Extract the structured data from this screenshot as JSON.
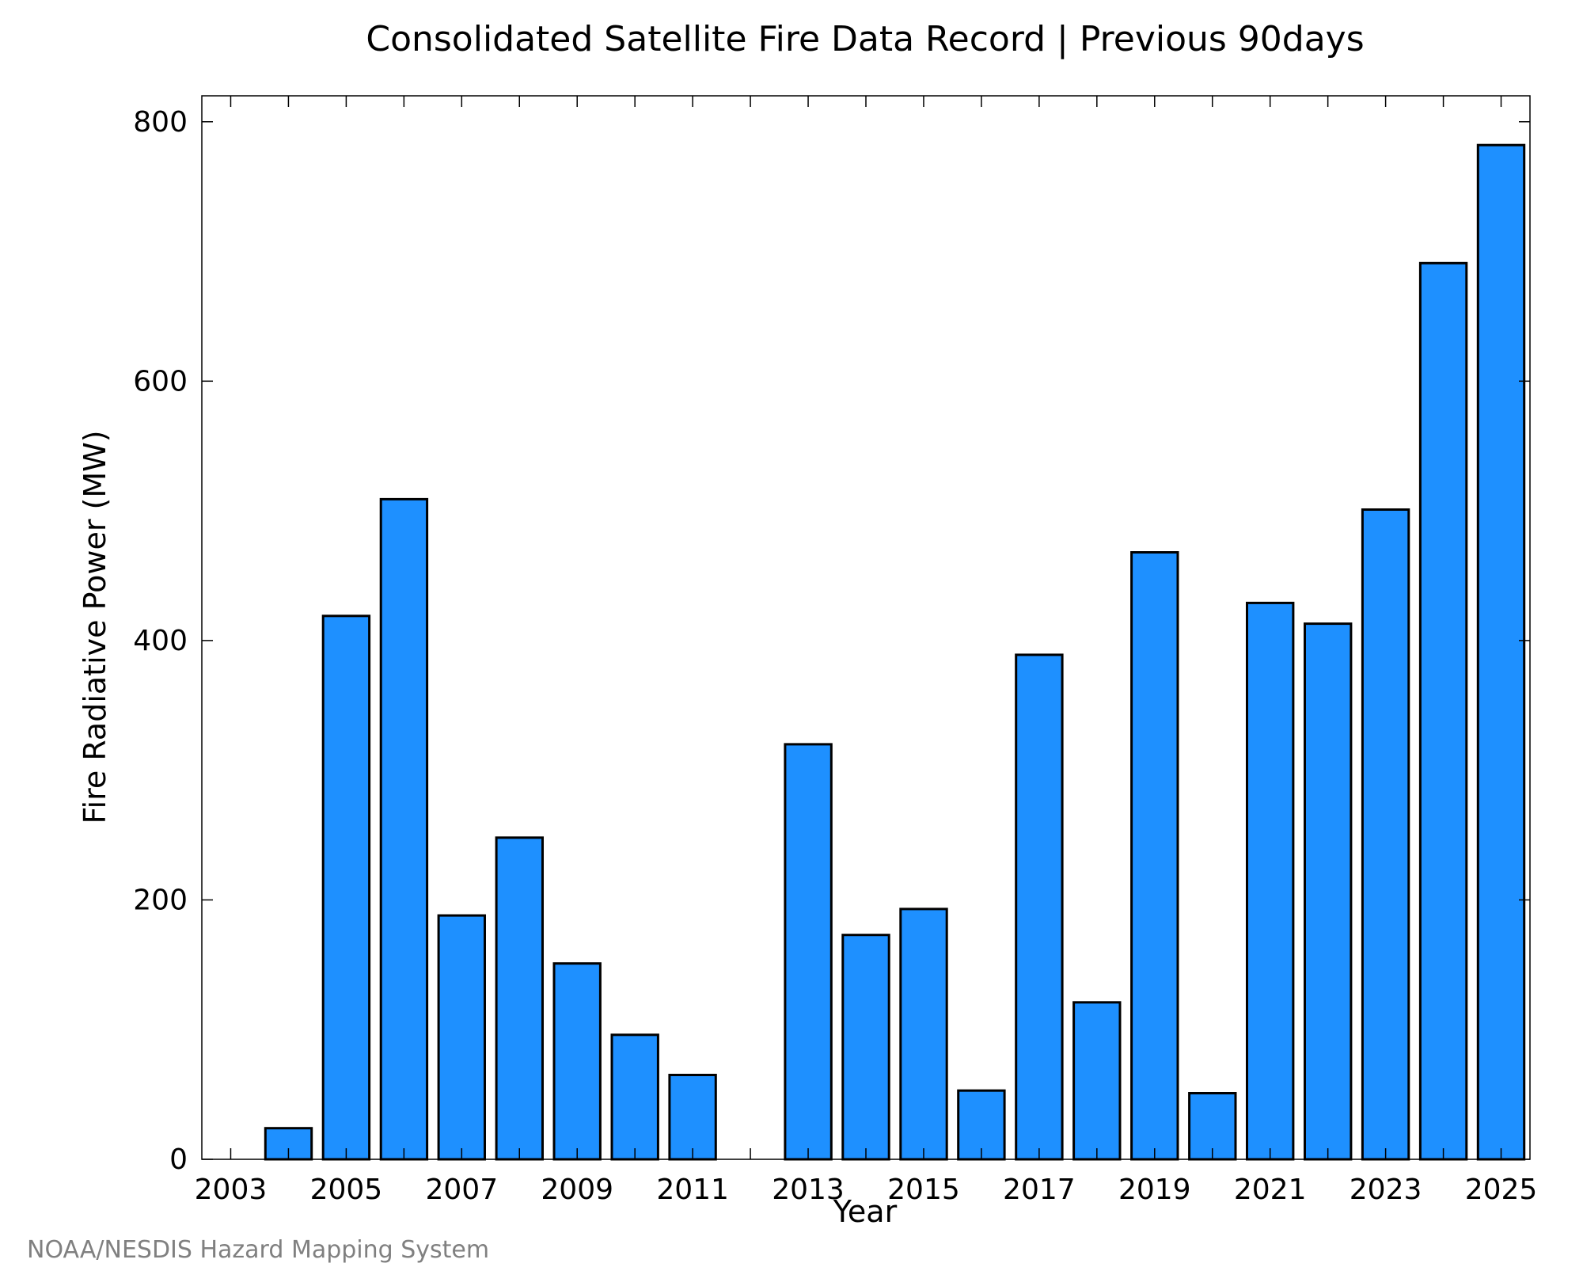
{
  "chart_data": {
    "type": "bar",
    "title": "Consolidated Satellite Fire Data Record | Previous 90days",
    "xlabel": "Year",
    "ylabel": "Fire Radiative Power (MW)",
    "ylim": [
      0,
      820
    ],
    "yticks": [
      0,
      200,
      400,
      600,
      800
    ],
    "xticks": [
      2003,
      2005,
      2007,
      2009,
      2011,
      2013,
      2015,
      2017,
      2019,
      2021,
      2023,
      2025
    ],
    "xlim": [
      2002.5,
      2025.5
    ],
    "grid": false,
    "bar_color": "#1E90FF",
    "categories": [
      2003,
      2004,
      2005,
      2006,
      2007,
      2008,
      2009,
      2010,
      2011,
      2012,
      2013,
      2014,
      2015,
      2016,
      2017,
      2018,
      2019,
      2020,
      2021,
      2022,
      2023,
      2024,
      2025
    ],
    "values": [
      0,
      24,
      419,
      509,
      188,
      248,
      151,
      96,
      65,
      0,
      320,
      173,
      193,
      53,
      389,
      121,
      468,
      51,
      429,
      413,
      501,
      691,
      782
    ]
  },
  "credit": "NOAA/NESDIS Hazard Mapping System"
}
